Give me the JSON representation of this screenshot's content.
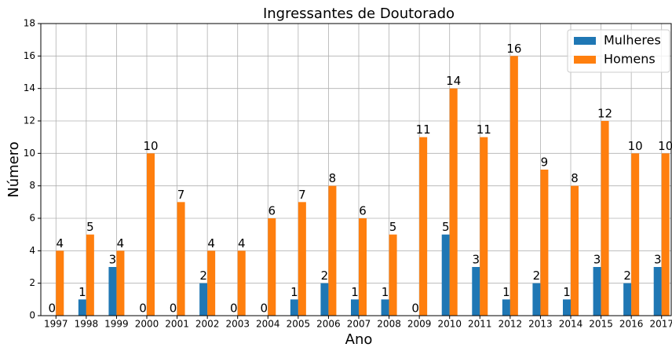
{
  "chart_data": {
    "type": "bar",
    "title": "Ingressantes de Doutorado",
    "x_label": "Ano",
    "y_label": "Número",
    "categories": [
      "1997",
      "1998",
      "1999",
      "2000",
      "2001",
      "2002",
      "2003",
      "2004",
      "2005",
      "2006",
      "2007",
      "2008",
      "2009",
      "2010",
      "2011",
      "2012",
      "2013",
      "2014",
      "2015",
      "2016",
      "2017"
    ],
    "series": [
      {
        "name": "Mulheres",
        "color": "#1f77b4",
        "values": [
          0,
          1,
          3,
          0,
          0,
          2,
          0,
          0,
          1,
          2,
          1,
          1,
          0,
          5,
          3,
          1,
          2,
          1,
          3,
          2,
          3
        ]
      },
      {
        "name": "Homens",
        "color": "#ff7f0e",
        "values": [
          4,
          5,
          4,
          10,
          7,
          4,
          4,
          6,
          7,
          8,
          6,
          5,
          11,
          14,
          11,
          16,
          9,
          8,
          12,
          10,
          10
        ]
      }
    ],
    "ylim": [
      0,
      18
    ],
    "yticks": [
      0,
      2,
      4,
      6,
      8,
      10,
      12,
      14,
      16,
      18
    ],
    "grid": true,
    "legend": "upper right"
  }
}
